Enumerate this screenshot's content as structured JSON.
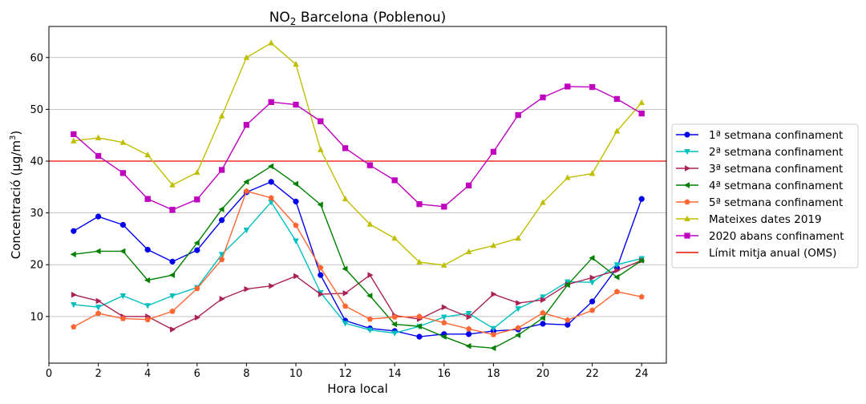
{
  "chart_data": {
    "type": "line",
    "title_main": "NO",
    "title_sub": "2",
    "title_rest": " Barcelona (Poblenou)",
    "xlabel": "Hora local",
    "ylabel_main": "Concentració (μg/m",
    "ylabel_sup": "3",
    "ylabel_end": ")",
    "xlim": [
      0,
      25
    ],
    "ylim": [
      1,
      66
    ],
    "xticks": [
      0,
      2,
      4,
      6,
      8,
      10,
      12,
      14,
      16,
      18,
      20,
      22,
      24
    ],
    "yticks": [
      10,
      20,
      30,
      40,
      50,
      60
    ],
    "grid": "horizontal",
    "legend_position": "outside-right",
    "x": [
      1,
      2,
      3,
      4,
      5,
      6,
      7,
      8,
      9,
      10,
      11,
      12,
      13,
      14,
      15,
      16,
      17,
      18,
      19,
      20,
      21,
      22,
      23,
      24
    ],
    "series": [
      {
        "name": "1ª setmana confinament",
        "color": "#0000ee",
        "marker": "circle",
        "values": [
          26.5,
          29.3,
          27.7,
          22.9,
          20.6,
          22.8,
          28.6,
          34.0,
          36.0,
          32.2,
          18.0,
          9.2,
          7.7,
          7.2,
          6.1,
          6.6,
          6.6,
          7.2,
          7.5,
          8.6,
          8.4,
          12.9,
          19.4,
          32.7
        ]
      },
      {
        "name": "2ª setmana confinament",
        "color": "#00bfbf",
        "marker": "triangle-down",
        "values": [
          12.3,
          11.8,
          14.0,
          12.1,
          14.0,
          15.6,
          22.0,
          26.7,
          32.1,
          24.6,
          14.6,
          8.7,
          7.4,
          6.8,
          8.1,
          9.9,
          10.6,
          7.7,
          11.5,
          13.8,
          16.7,
          16.6,
          20.0,
          21.2
        ]
      },
      {
        "name": "3ª setmana confinament",
        "color": "#aa2255",
        "marker": "triangle-right",
        "values": [
          14.2,
          13.0,
          10.0,
          10.0,
          7.5,
          9.8,
          13.4,
          15.3,
          15.9,
          17.8,
          14.3,
          14.5,
          18.0,
          10.2,
          9.5,
          11.8,
          9.9,
          14.3,
          12.6,
          13.2,
          16.2,
          17.5,
          18.9,
          20.8
        ]
      },
      {
        "name": "4ª setmana confinament",
        "color": "#008000",
        "marker": "triangle-left",
        "values": [
          22.0,
          22.6,
          22.6,
          17.0,
          18.0,
          24.2,
          30.7,
          36.0,
          39.0,
          35.6,
          31.6,
          19.2,
          14.0,
          8.5,
          8.1,
          6.1,
          4.3,
          3.9,
          6.4,
          9.7,
          16.1,
          21.3,
          17.6,
          20.8
        ]
      },
      {
        "name": "5ª setmana confinament",
        "color": "#ff6633",
        "marker": "pentagon",
        "values": [
          8.0,
          10.6,
          9.6,
          9.4,
          11.0,
          15.4,
          21.0,
          34.2,
          32.9,
          27.6,
          19.4,
          12.0,
          9.5,
          9.9,
          10.0,
          8.8,
          7.6,
          6.5,
          7.8,
          10.7,
          9.3,
          11.2,
          14.8,
          13.8
        ]
      },
      {
        "name": "Mateixes dates 2019",
        "color": "#bfbf00",
        "marker": "triangle-up",
        "values": [
          43.9,
          44.5,
          43.6,
          41.2,
          35.4,
          37.8,
          48.7,
          60.0,
          62.8,
          58.7,
          42.2,
          32.7,
          27.8,
          25.1,
          20.5,
          19.9,
          22.5,
          23.7,
          25.1,
          32.0,
          36.8,
          37.6,
          45.8,
          51.3
        ]
      },
      {
        "name": "2020 abans confinament",
        "color": "#bf00bf",
        "marker": "square",
        "values": [
          45.2,
          41.0,
          37.7,
          32.7,
          30.6,
          32.6,
          38.3,
          47.0,
          51.4,
          50.9,
          47.7,
          42.5,
          39.2,
          36.3,
          31.7,
          31.2,
          35.3,
          41.8,
          48.9,
          52.3,
          54.4,
          54.3,
          52.0,
          49.2
        ]
      }
    ],
    "reference_line": {
      "name": "Límit mitja anual (OMS)",
      "color": "#e8322a",
      "value": 40
    }
  }
}
